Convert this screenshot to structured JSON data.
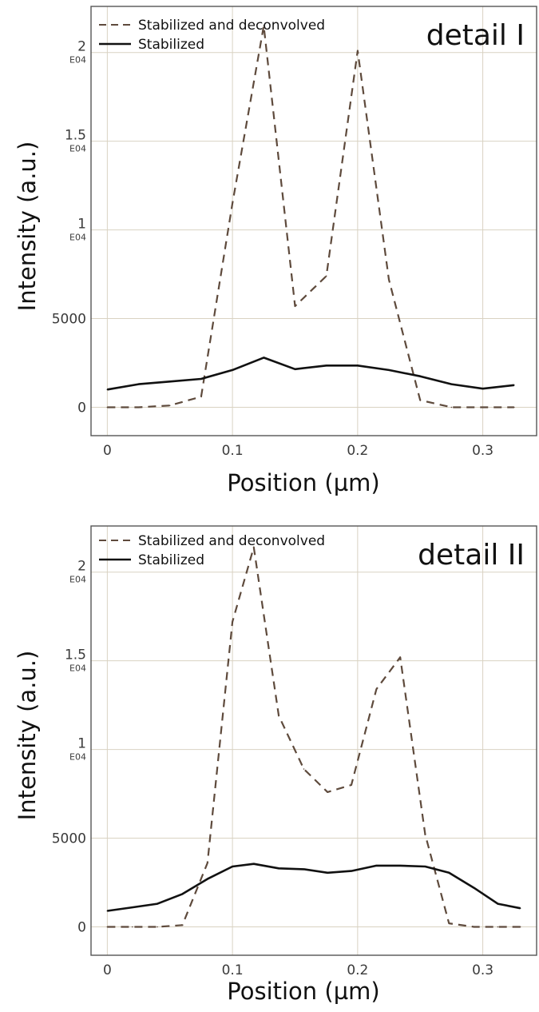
{
  "chart_data": [
    {
      "type": "line",
      "title": "detail I",
      "xlabel": "Position (µm)",
      "ylabel": "Intensity (a.u.)",
      "xlim": [
        -0.013,
        0.343
      ],
      "ylim": [
        -1600,
        22600
      ],
      "grid": true,
      "legend_position": "top-left",
      "x_ticks": [
        {
          "v": 0,
          "label": "0"
        },
        {
          "v": 0.1,
          "label": "0.1"
        },
        {
          "v": 0.2,
          "label": "0.2"
        },
        {
          "v": 0.3,
          "label": "0.3"
        }
      ],
      "y_ticks": [
        {
          "v": 0,
          "label": "0",
          "sub": ""
        },
        {
          "v": 5000,
          "label": "5000",
          "sub": ""
        },
        {
          "v": 10000,
          "label": "1",
          "sub": "E04"
        },
        {
          "v": 15000,
          "label": "1.5",
          "sub": "E04"
        },
        {
          "v": 20000,
          "label": "2",
          "sub": "E04"
        }
      ],
      "series": [
        {
          "name": "Stabilized and deconvolved",
          "style": "dashed",
          "color": "#5e4a3c",
          "x": [
            0,
            0.025,
            0.05,
            0.075,
            0.1,
            0.125,
            0.15,
            0.175,
            0.2,
            0.225,
            0.25,
            0.275,
            0.3,
            0.325
          ],
          "y": [
            0,
            0,
            100,
            600,
            11500,
            21500,
            5700,
            7400,
            20100,
            7200,
            400,
            0,
            0,
            0
          ]
        },
        {
          "name": "Stabilized",
          "style": "solid",
          "color": "#111111",
          "x": [
            0,
            0.025,
            0.05,
            0.075,
            0.1,
            0.125,
            0.15,
            0.175,
            0.2,
            0.225,
            0.25,
            0.275,
            0.3,
            0.325
          ],
          "y": [
            1000,
            1300,
            1450,
            1600,
            2100,
            2800,
            2150,
            2350,
            2350,
            2100,
            1750,
            1300,
            1050,
            1250
          ]
        }
      ]
    },
    {
      "type": "line",
      "title": "detail II",
      "xlabel": "Position (µm)",
      "ylabel": "Intensity (a.u.)",
      "xlim": [
        -0.013,
        0.343
      ],
      "ylim": [
        -1600,
        22600
      ],
      "grid": true,
      "legend_position": "top-left",
      "x_ticks": [
        {
          "v": 0,
          "label": "0"
        },
        {
          "v": 0.1,
          "label": "0.1"
        },
        {
          "v": 0.2,
          "label": "0.2"
        },
        {
          "v": 0.3,
          "label": "0.3"
        }
      ],
      "y_ticks": [
        {
          "v": 0,
          "label": "0",
          "sub": ""
        },
        {
          "v": 5000,
          "label": "5000",
          "sub": ""
        },
        {
          "v": 10000,
          "label": "1",
          "sub": "E04"
        },
        {
          "v": 15000,
          "label": "1.5",
          "sub": "E04"
        },
        {
          "v": 20000,
          "label": "2",
          "sub": "E04"
        }
      ],
      "series": [
        {
          "name": "Stabilized and deconvolved",
          "style": "dashed",
          "color": "#5e4a3c",
          "x": [
            0,
            0.02,
            0.04,
            0.06,
            0.08,
            0.1,
            0.117,
            0.137,
            0.157,
            0.176,
            0.195,
            0.215,
            0.234,
            0.254,
            0.273,
            0.293,
            0.312,
            0.33
          ],
          "y": [
            0,
            0,
            0,
            100,
            3600,
            17200,
            21400,
            11900,
            8900,
            7600,
            8000,
            13400,
            15200,
            5200,
            200,
            0,
            0,
            0
          ]
        },
        {
          "name": "Stabilized",
          "style": "solid",
          "color": "#111111",
          "x": [
            0,
            0.02,
            0.04,
            0.06,
            0.08,
            0.1,
            0.117,
            0.137,
            0.157,
            0.176,
            0.195,
            0.215,
            0.234,
            0.254,
            0.273,
            0.293,
            0.312,
            0.33
          ],
          "y": [
            900,
            1100,
            1300,
            1850,
            2700,
            3400,
            3550,
            3300,
            3250,
            3050,
            3150,
            3450,
            3450,
            3400,
            3050,
            2200,
            1300,
            1050
          ]
        }
      ]
    }
  ]
}
